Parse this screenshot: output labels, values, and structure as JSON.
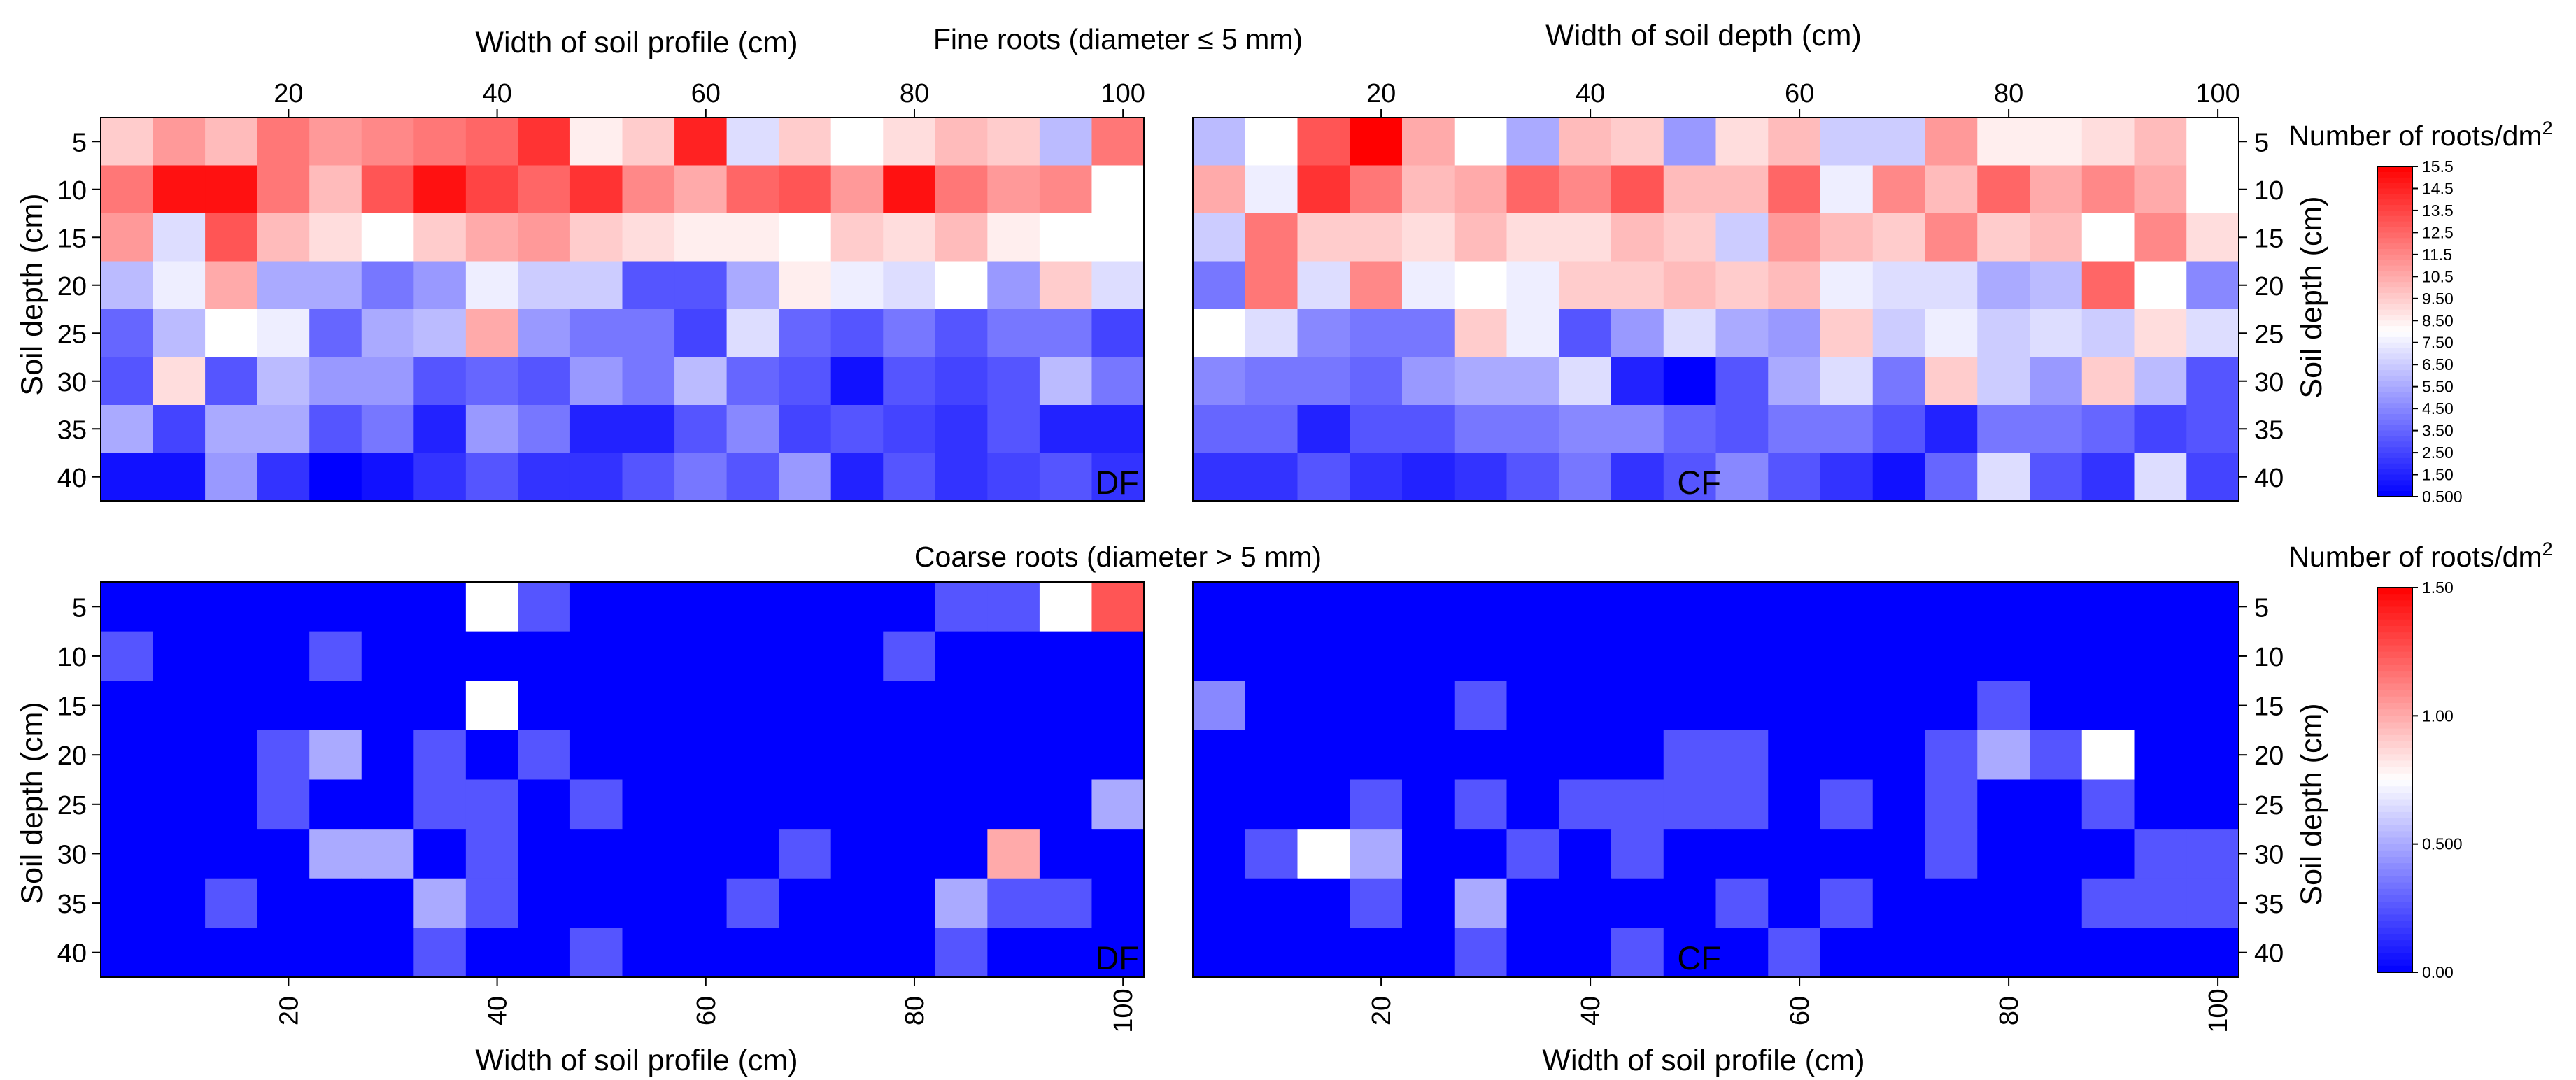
{
  "figure": {
    "fine_title": "Fine roots (diameter ≤ 5 mm)",
    "coarse_title": "Coarse roots (diameter > 5 mm)",
    "colorbar_title_prefix": "Number of roots/dm",
    "colorbar_title_sup": "2",
    "fine_top_left_xlabel": "Width of soil profile (cm)",
    "fine_top_right_xlabel": "Width of soil depth (cm)",
    "coarse_bottom_left_xlabel": "Width of soil profile (cm)",
    "coarse_bottom_right_xlabel": "Width of soil profile (cm)",
    "ylabel_left": "Soil depth (cm)",
    "ylabel_right": "Soil depth (cm)",
    "label_df": "DF",
    "label_cf": "CF"
  },
  "chart_data": [
    {
      "type": "heatmap",
      "panel": "Fine roots DF",
      "title": "Fine roots (diameter ≤ 5 mm)",
      "xlabel": "Width of soil profile (cm)",
      "ylabel": "Soil depth (cm)",
      "x_range": [
        2,
        102
      ],
      "x_ticks": [
        20,
        40,
        60,
        80,
        100
      ],
      "y_categories": [
        5,
        10,
        15,
        20,
        25,
        30,
        35,
        40
      ],
      "zlim": [
        0.5,
        15.5
      ],
      "label": "DF",
      "values": [
        [
          9.5,
          11,
          10,
          12,
          11,
          11.5,
          12,
          12.5,
          14,
          8.5,
          9.5,
          14.5,
          7,
          9.5,
          8,
          9,
          10,
          9.5,
          6,
          12
        ],
        [
          12,
          15,
          15,
          12,
          10,
          13,
          15,
          13.5,
          12.5,
          14,
          11.5,
          10.5,
          12.5,
          13,
          11,
          15,
          12,
          11,
          11.5,
          8
        ],
        [
          11,
          7,
          13,
          10,
          9,
          8,
          9.5,
          10.5,
          11,
          9.5,
          9,
          8.5,
          8.5,
          8,
          9.5,
          9,
          10,
          8.5,
          8,
          8
        ],
        [
          6,
          7.5,
          10.5,
          5.5,
          5.5,
          4,
          5,
          7.5,
          6.5,
          6.5,
          3,
          3,
          5.5,
          8.5,
          7.5,
          7,
          8,
          5,
          9.5,
          7
        ],
        [
          3.5,
          6,
          8,
          7.5,
          3.5,
          5.5,
          6,
          10.5,
          5,
          4,
          4,
          2.5,
          7,
          3.5,
          3,
          4,
          3,
          4,
          4,
          2.5
        ],
        [
          3,
          9,
          3,
          6,
          5,
          5,
          3,
          3.5,
          3,
          5,
          4,
          6,
          3.5,
          3,
          1,
          3,
          2.5,
          3,
          6,
          4
        ],
        [
          5.5,
          2.5,
          5.5,
          5.5,
          3,
          4,
          1.5,
          5,
          4,
          1.5,
          1.5,
          3,
          4.5,
          2.5,
          3,
          2.5,
          2,
          3,
          1.5,
          1.5
        ],
        [
          1,
          1,
          5,
          2,
          0.5,
          1,
          2,
          3,
          2,
          2,
          3,
          4,
          3,
          5,
          1.5,
          3,
          2,
          2.5,
          3,
          2
        ]
      ]
    },
    {
      "type": "heatmap",
      "panel": "Fine roots CF",
      "title": "Fine roots (diameter ≤ 5 mm)",
      "xlabel": "Width of soil depth (cm)",
      "ylabel": "Soil depth (cm)",
      "x_range": [
        2,
        102
      ],
      "x_ticks": [
        20,
        40,
        60,
        80,
        100
      ],
      "y_categories": [
        5,
        10,
        15,
        20,
        25,
        30,
        35,
        40
      ],
      "zlim": [
        0.5,
        15.5
      ],
      "label": "CF",
      "values": [
        [
          6,
          8,
          13,
          15.5,
          10.5,
          8,
          5.5,
          10,
          9.5,
          5,
          9,
          10,
          6.5,
          6.5,
          11,
          8.5,
          8.5,
          9,
          10,
          8
        ],
        [
          10.5,
          7.5,
          14,
          12,
          10,
          10.5,
          12.5,
          11.5,
          13,
          10,
          10,
          12.5,
          7.5,
          11.5,
          10,
          12.5,
          10.5,
          11.5,
          10.5,
          8
        ],
        [
          6.5,
          12,
          9.5,
          9.5,
          9,
          10,
          9,
          9,
          10,
          9.5,
          6.5,
          11,
          10,
          9.5,
          11.5,
          9.5,
          10,
          8,
          11.5,
          9
        ],
        [
          4,
          12,
          7,
          11.5,
          7.5,
          8,
          7.5,
          9.5,
          9.5,
          10,
          9.5,
          10,
          7.5,
          7,
          7,
          5.5,
          6,
          12.5,
          8,
          4.5
        ],
        [
          8,
          7,
          4.5,
          4,
          4,
          9.5,
          7.5,
          3,
          5,
          7,
          5.5,
          5,
          9.5,
          6.5,
          7.5,
          6.5,
          7,
          6.5,
          9,
          7
        ],
        [
          4.5,
          4,
          4,
          3.5,
          5,
          5.5,
          5.5,
          7,
          1.5,
          0.5,
          3,
          5.5,
          7,
          4,
          9.5,
          6.5,
          5,
          9.5,
          6,
          3
        ],
        [
          3.5,
          3.5,
          1.5,
          3,
          3,
          4,
          4,
          4.5,
          4.5,
          3.5,
          3,
          4,
          4,
          3,
          1.5,
          4,
          4,
          3.5,
          2.5,
          3
        ],
        [
          2,
          2,
          3,
          2,
          1.5,
          2,
          3,
          4,
          2,
          3,
          4.5,
          3,
          2,
          1,
          3.5,
          7,
          3,
          2,
          7,
          2.5
        ]
      ]
    },
    {
      "type": "heatmap",
      "panel": "Coarse roots DF",
      "title": "Coarse roots (diameter > 5 mm)",
      "xlabel": "Width of soil profile (cm)",
      "ylabel": "Soil depth (cm)",
      "x_range": [
        2,
        102
      ],
      "x_ticks": [
        20,
        40,
        60,
        80,
        100
      ],
      "y_categories": [
        5,
        10,
        15,
        20,
        25,
        30,
        35,
        40
      ],
      "zlim": [
        0,
        1.5
      ],
      "label": "DF",
      "values": [
        [
          0,
          0,
          0,
          0,
          0,
          0,
          0,
          0.75,
          0.25,
          0,
          0,
          0,
          0,
          0,
          0,
          0,
          0.25,
          0.25,
          0.75,
          1.25
        ],
        [
          0.25,
          0,
          0,
          0,
          0.25,
          0,
          0,
          0,
          0,
          0,
          0,
          0,
          0,
          0,
          0,
          0.25,
          0,
          0,
          0,
          0
        ],
        [
          0,
          0,
          0,
          0,
          0,
          0,
          0,
          0.75,
          0,
          0,
          0,
          0,
          0,
          0,
          0,
          0,
          0,
          0,
          0,
          0
        ],
        [
          0,
          0,
          0,
          0.25,
          0.5,
          0,
          0.25,
          0,
          0.25,
          0,
          0,
          0,
          0,
          0,
          0,
          0,
          0,
          0,
          0,
          0
        ],
        [
          0,
          0,
          0,
          0.25,
          0,
          0,
          0.25,
          0.25,
          0,
          0.25,
          0,
          0,
          0,
          0,
          0,
          0,
          0,
          0,
          0,
          0.5
        ],
        [
          0,
          0,
          0,
          0,
          0.5,
          0.5,
          0,
          0.25,
          0,
          0,
          0,
          0,
          0,
          0.25,
          0,
          0,
          0,
          1.0,
          0,
          0
        ],
        [
          0,
          0,
          0.25,
          0,
          0,
          0,
          0.5,
          0.25,
          0,
          0,
          0,
          0,
          0.25,
          0,
          0,
          0,
          0.5,
          0.25,
          0.25,
          0
        ],
        [
          0,
          0,
          0,
          0,
          0,
          0,
          0.25,
          0,
          0,
          0.25,
          0,
          0,
          0,
          0,
          0,
          0,
          0.25,
          0,
          0,
          0
        ]
      ]
    },
    {
      "type": "heatmap",
      "panel": "Coarse roots CF",
      "title": "Coarse roots (diameter > 5 mm)",
      "xlabel": "Width of soil profile (cm)",
      "ylabel": "Soil depth (cm)",
      "x_range": [
        2,
        102
      ],
      "x_ticks": [
        20,
        40,
        60,
        80,
        100
      ],
      "y_categories": [
        5,
        10,
        15,
        20,
        25,
        30,
        35,
        40
      ],
      "zlim": [
        0,
        1.5
      ],
      "label": "CF",
      "values": [
        [
          0,
          0,
          0,
          0,
          0,
          0,
          0,
          0,
          0,
          0,
          0,
          0,
          0,
          0,
          0,
          0,
          0,
          0,
          0,
          0
        ],
        [
          0,
          0,
          0,
          0,
          0,
          0,
          0,
          0,
          0,
          0,
          0,
          0,
          0,
          0,
          0,
          0,
          0,
          0,
          0,
          0
        ],
        [
          0.4,
          0,
          0,
          0,
          0,
          0.25,
          0,
          0,
          0,
          0,
          0,
          0,
          0,
          0,
          0,
          0.25,
          0,
          0,
          0,
          0
        ],
        [
          0,
          0,
          0,
          0,
          0,
          0,
          0,
          0,
          0,
          0.25,
          0.25,
          0,
          0,
          0,
          0.25,
          0.5,
          0.25,
          0.75,
          0,
          0
        ],
        [
          0,
          0,
          0,
          0.25,
          0,
          0.25,
          0,
          0.25,
          0.25,
          0.25,
          0.25,
          0,
          0.25,
          0,
          0.25,
          0,
          0,
          0.25,
          0,
          0
        ],
        [
          0,
          0.25,
          0.75,
          0.5,
          0,
          0,
          0.25,
          0,
          0.25,
          0,
          0,
          0,
          0,
          0,
          0.25,
          0,
          0,
          0,
          0.25,
          0.25
        ],
        [
          0,
          0,
          0,
          0.25,
          0,
          0.5,
          0,
          0,
          0,
          0,
          0.25,
          0,
          0.25,
          0,
          0,
          0,
          0,
          0.25,
          0.25,
          0.25
        ],
        [
          0,
          0,
          0,
          0,
          0,
          0.25,
          0,
          0,
          0.25,
          0,
          0,
          0.25,
          0,
          0,
          0,
          0,
          0,
          0,
          0,
          0
        ]
      ]
    }
  ],
  "colorbars": [
    {
      "for": "fine",
      "min": 0.5,
      "max": 15.5,
      "tick_labels": [
        "15.5",
        "14.5",
        "13.5",
        "12.5",
        "11.5",
        "10.5",
        "9.50",
        "8.50",
        "7.50",
        "6.50",
        "5.50",
        "4.50",
        "3.50",
        "2.50",
        "1.50",
        "0.500"
      ]
    },
    {
      "for": "coarse",
      "min": 0,
      "max": 1.5,
      "tick_labels": [
        "1.50",
        "1.00",
        "0.500",
        "0.00"
      ]
    }
  ],
  "colors": {
    "low": "#0000ff",
    "mid": "#ffffff",
    "high": "#ff0000"
  }
}
